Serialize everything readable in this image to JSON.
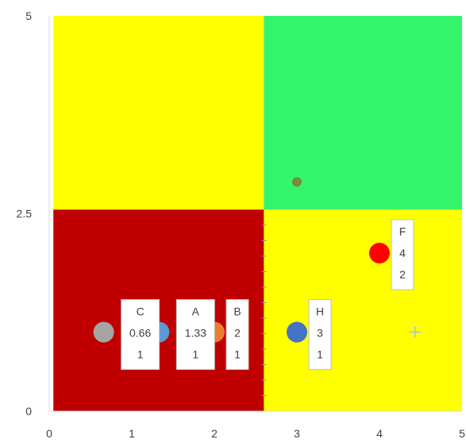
{
  "chart_data": {
    "type": "scatter",
    "title": "",
    "xlabel": "",
    "ylabel": "",
    "xlim": [
      0,
      5
    ],
    "ylim": [
      0,
      5
    ],
    "x_ticks": [
      "0",
      "1",
      "2",
      "3",
      "4",
      "5"
    ],
    "y_ticks": [
      "0",
      "2.5",
      "5"
    ],
    "grid": false,
    "quadrants": [
      {
        "name": "bottom-left",
        "x": [
          0.05,
          2.6
        ],
        "y": [
          0,
          2.55
        ],
        "color": "#c00000"
      },
      {
        "name": "top-left",
        "x": [
          0.05,
          2.6
        ],
        "y": [
          2.55,
          5
        ],
        "color": "#ffff00"
      },
      {
        "name": "bottom-right",
        "x": [
          2.6,
          5
        ],
        "y": [
          0,
          2.55
        ],
        "color": "#ffff00"
      },
      {
        "name": "top-right",
        "x": [
          2.6,
          5
        ],
        "y": [
          2.55,
          5
        ],
        "color": "#33f56b"
      }
    ],
    "points": [
      {
        "x": 0.66,
        "y": 1,
        "color": "#a5a5a5",
        "label": [
          "C",
          "0.66",
          "1"
        ]
      },
      {
        "x": 1.33,
        "y": 1,
        "color": "#5b9bd5",
        "label": [
          "A",
          "1.33",
          "1"
        ]
      },
      {
        "x": 2,
        "y": 1,
        "color": "#ed7d31",
        "label": [
          "B",
          "2",
          "1"
        ]
      },
      {
        "x": 3,
        "y": 1,
        "color": "#4472c4",
        "label": [
          "H",
          "3",
          "1"
        ]
      },
      {
        "x": 4,
        "y": 2,
        "color": "#ff0000",
        "label": [
          "F",
          "4",
          "2"
        ]
      },
      {
        "x": 3,
        "y": 2.9,
        "color": "#7a8a3a",
        "small": true
      },
      {
        "x": 4.43,
        "y": 1,
        "color": "#9dc3e6",
        "marker": "plus"
      }
    ]
  }
}
